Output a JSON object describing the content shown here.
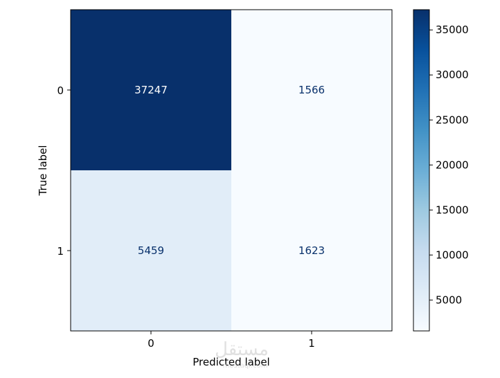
{
  "chart_data": {
    "type": "heatmap",
    "title": "",
    "xlabel": "Predicted label",
    "ylabel": "True label",
    "x_categories": [
      "0",
      "1"
    ],
    "y_categories": [
      "0",
      "1"
    ],
    "matrix": [
      [
        37247,
        1566
      ],
      [
        5459,
        1623
      ]
    ],
    "colormap": "Blues",
    "colorbar": {
      "ticks": [
        5000,
        10000,
        15000,
        20000,
        25000,
        30000,
        35000
      ],
      "min": 1566,
      "max": 37247
    },
    "grid": false
  },
  "colors": {
    "dark_text": "#ffffff",
    "light_text": "#08306b"
  },
  "watermark": {
    "text": "مستقل",
    "subtext": "mostaql.com"
  }
}
